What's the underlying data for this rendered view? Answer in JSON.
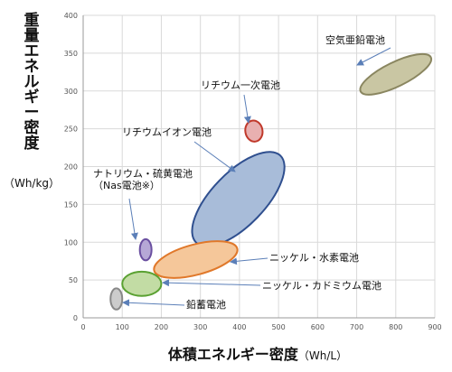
{
  "chart_data": {
    "type": "scatter",
    "ylabel_lines": [
      "重",
      "量",
      "エ",
      "ネ",
      "ル",
      "ギ",
      "ー",
      "密",
      "度"
    ],
    "ylabel_unit": "（Wh/kg）",
    "xlabel": "体積エネルギー密度",
    "xlabel_unit": "（Wh/L）",
    "xlim": [
      0,
      900
    ],
    "ylim": [
      0,
      400
    ],
    "xticks": [
      0,
      100,
      200,
      300,
      400,
      500,
      600,
      700,
      800,
      900
    ],
    "yticks": [
      0,
      50,
      100,
      150,
      200,
      250,
      300,
      350,
      400
    ],
    "grid": true,
    "regions": [
      {
        "label_lines": [
          "空気亜鉛電池"
        ],
        "cx": 800,
        "cy": 322,
        "rx": 100,
        "ry": 16,
        "angle_deg": -26,
        "fill": "#c9c6a3",
        "stroke": "#8a8660"
      },
      {
        "label_lines": [
          "リチウム一次電池"
        ],
        "cx": 437,
        "cy": 247,
        "rx": 22,
        "ry": 14,
        "angle_deg": -10,
        "fill": "#e8b0b0",
        "stroke": "#c0392b"
      },
      {
        "label_lines": [
          "リチウムイオン電池"
        ],
        "cx": 397,
        "cy": 157,
        "rx": 155,
        "ry": 35,
        "angle_deg": -46,
        "fill": "#a8bcd9",
        "stroke": "#2f4f8f"
      },
      {
        "label_lines": [
          "ナトリウム・硫黄電池",
          "（Nas電池※）"
        ],
        "cx": 160,
        "cy": 90,
        "rx": 15,
        "ry": 14,
        "angle_deg": 0,
        "fill": "#b6a8d6",
        "stroke": "#6a4fa0"
      },
      {
        "label_lines": [
          "ニッケル・水素電池"
        ],
        "cx": 288,
        "cy": 77,
        "rx": 110,
        "ry": 20,
        "angle_deg": -15,
        "fill": "#f5c79a",
        "stroke": "#e0782a"
      },
      {
        "label_lines": [
          "ニッケル・カドミウム電池"
        ],
        "cx": 150,
        "cy": 45,
        "rx": 50,
        "ry": 16,
        "angle_deg": 0,
        "fill": "#c2dca4",
        "stroke": "#5aa132"
      },
      {
        "label_lines": [
          "鉛蓄電池"
        ],
        "cx": 85,
        "cy": 25,
        "rx": 15,
        "ry": 14,
        "angle_deg": 0,
        "fill": "#cccccc",
        "stroke": "#888888"
      }
    ]
  }
}
